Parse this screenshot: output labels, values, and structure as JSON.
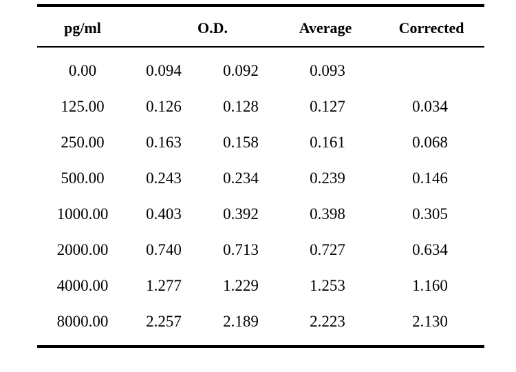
{
  "table": {
    "headers": {
      "concentration": "pg/ml",
      "od": "O.D.",
      "average": "Average",
      "corrected": "Corrected"
    },
    "rows": [
      {
        "conc": "0.00",
        "od1": "0.094",
        "od2": "0.092",
        "avg": "0.093",
        "corr": ""
      },
      {
        "conc": "125.00",
        "od1": "0.126",
        "od2": "0.128",
        "avg": "0.127",
        "corr": "0.034"
      },
      {
        "conc": "250.00",
        "od1": "0.163",
        "od2": "0.158",
        "avg": "0.161",
        "corr": "0.068"
      },
      {
        "conc": "500.00",
        "od1": "0.243",
        "od2": "0.234",
        "avg": "0.239",
        "corr": "0.146"
      },
      {
        "conc": "1000.00",
        "od1": "0.403",
        "od2": "0.392",
        "avg": "0.398",
        "corr": "0.305"
      },
      {
        "conc": "2000.00",
        "od1": "0.740",
        "od2": "0.713",
        "avg": "0.727",
        "corr": "0.634"
      },
      {
        "conc": "4000.00",
        "od1": "1.277",
        "od2": "1.229",
        "avg": "1.253",
        "corr": "1.160"
      },
      {
        "conc": "8000.00",
        "od1": "2.257",
        "od2": "2.189",
        "avg": "2.223",
        "corr": "2.130"
      }
    ]
  }
}
